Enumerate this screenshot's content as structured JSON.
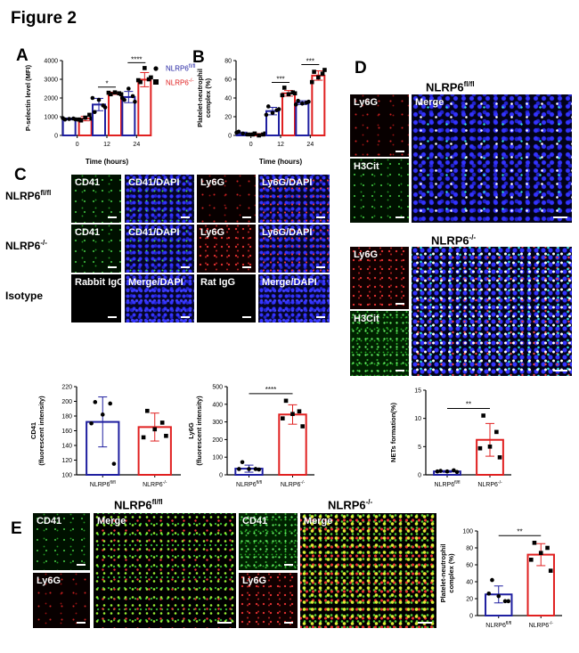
{
  "figure_title": "Figure 2",
  "panels": {
    "A": "A",
    "B": "B",
    "C": "C",
    "D": "D",
    "E": "E"
  },
  "genotypes": {
    "flfl": {
      "base": "NLRP6",
      "sup": "fl/fl"
    },
    "ko": {
      "base": "NLRP6",
      "sup": "-/-"
    }
  },
  "colors": {
    "flfl": "#1f1fa0",
    "ko": "#e02020"
  },
  "legend": [
    {
      "marker": "circle",
      "base": "NLRP6",
      "sup": "fl/fl",
      "color": "#1f1fa0"
    },
    {
      "marker": "square",
      "base": "NLRP6",
      "sup": "-/-",
      "color": "#e02020"
    }
  ],
  "panel_c": {
    "rows": [
      {
        "base": "NLRP6",
        "sup": "fl/fl",
        "images": [
          "CD41",
          "CD41/DAPI",
          "Ly6G",
          "Ly6G/DAPI"
        ]
      },
      {
        "base": "NLRP6",
        "sup": "-/-",
        "images": [
          "CD41",
          "CD41/DAPI",
          "Ly6G",
          "Ly6G/DAPI"
        ]
      },
      {
        "base": "Isotype",
        "sup": "",
        "images": [
          "Rabbit IgG",
          "Merge/DAPI",
          "Rat IgG",
          "Merge/DAPI"
        ]
      }
    ]
  },
  "panel_d": {
    "groups": [
      {
        "base": "NLRP6",
        "sup": "fl/fl",
        "images": [
          "Ly6G",
          "H3Cit",
          "Merge"
        ]
      },
      {
        "base": "NLRP6",
        "sup": "-/-",
        "images": [
          "Ly6G",
          "H3Cit"
        ]
      }
    ]
  },
  "panel_e": {
    "groups": [
      {
        "base": "NLRP6",
        "sup": "fl/fl",
        "images": [
          "CD41",
          "Ly6G",
          "Merge"
        ]
      },
      {
        "base": "NLRP6",
        "sup": "-/-",
        "images": [
          "CD41",
          "Ly6G",
          "Merge"
        ]
      }
    ]
  },
  "chart_data": [
    {
      "id": "A",
      "type": "bar",
      "xlabel": "Time (hours)",
      "ylabel": [
        "P-selectin level (MFI)"
      ],
      "ylim": [
        0,
        4000
      ],
      "yticks": [
        0,
        1000,
        2000,
        3000,
        4000
      ],
      "categories": [
        "0",
        "12",
        "24"
      ],
      "series": [
        {
          "name": "NLRP6fl/fl",
          "color": "#1f1fa0",
          "marker": "circle",
          "values": [
            880,
            1650,
            2050
          ],
          "errors": [
            50,
            330,
            300
          ],
          "points": [
            [
              850,
              900,
              880,
              920,
              860
            ],
            [
              1250,
              1600,
              1900,
              2000,
              1500
            ],
            [
              1900,
              2100,
              2500,
              2000,
              1800
            ]
          ]
        },
        {
          "name": "NLRP6-/-",
          "color": "#e02020",
          "marker": "square",
          "values": [
            900,
            2250,
            2980
          ],
          "errors": [
            120,
            60,
            380
          ],
          "points": [
            [
              800,
              1100,
              950,
              850,
              900
            ],
            [
              2200,
              2250,
              2300,
              2280,
              2200
            ],
            [
              2850,
              3000,
              3600,
              2950,
              3100
            ]
          ]
        }
      ],
      "significance": [
        "",
        "*",
        "****"
      ]
    },
    {
      "id": "B",
      "type": "bar",
      "xlabel": "Time (hours)",
      "ylabel": [
        "Platelet-neutrophil",
        "complex (%)"
      ],
      "ylim": [
        0,
        80
      ],
      "yticks": [
        0,
        20,
        40,
        60,
        80
      ],
      "categories": [
        "0",
        "12",
        "24"
      ],
      "series": [
        {
          "name": "NLRP6fl/fl",
          "color": "#1f1fa0",
          "marker": "circle",
          "values": [
            2,
            26,
            35
          ],
          "errors": [
            1.5,
            4,
            2
          ],
          "points": [
            [
              4,
              1,
              2,
              3,
              1
            ],
            [
              31,
              27,
              24,
              22,
              28
            ],
            [
              37,
              35,
              34,
              33,
              36
            ]
          ]
        },
        {
          "name": "NLRP6-/-",
          "color": "#e02020",
          "marker": "square",
          "values": [
            1,
            45,
            64
          ],
          "errors": [
            1,
            3,
            5
          ],
          "points": [
            [
              2,
              1,
              0,
              1,
              2
            ],
            [
              51,
              46,
              44,
              43,
              45
            ],
            [
              68,
              66,
              62,
              57,
              70
            ]
          ]
        }
      ],
      "significance": [
        "",
        "***",
        "***"
      ]
    },
    {
      "id": "C-CD41",
      "type": "bar",
      "xlabel": "",
      "ylabel": [
        "CD41",
        "(fluorescent intensity)"
      ],
      "ylim": [
        100,
        220
      ],
      "yticks": [
        100,
        120,
        140,
        160,
        180,
        200,
        220
      ],
      "categories": [
        "NLRP6fl/fl",
        "NLRP6-/-"
      ],
      "bars": [
        {
          "color": "#1f1fa0",
          "marker": "circle",
          "value": 172,
          "error": 34,
          "points": [
            199,
            197,
            182,
            170,
            115
          ]
        },
        {
          "color": "#e02020",
          "marker": "square",
          "value": 165,
          "error": 19,
          "points": [
            187,
            171,
            162,
            151,
            153
          ]
        }
      ],
      "significance": ""
    },
    {
      "id": "C-Ly6G",
      "type": "bar",
      "xlabel": "",
      "ylabel": [
        "Ly6G",
        "(fluorescent intensity)"
      ],
      "ylim": [
        0,
        500
      ],
      "yticks": [
        0,
        100,
        200,
        300,
        400,
        500
      ],
      "categories": [
        "NLRP6fl/fl",
        "NLRP6-/-"
      ],
      "bars": [
        {
          "color": "#1f1fa0",
          "marker": "circle",
          "value": 35,
          "error": 20,
          "points": [
            72,
            33,
            33,
            33,
            30
          ]
        },
        {
          "color": "#e02020",
          "marker": "square",
          "value": 342,
          "error": 55,
          "points": [
            420,
            360,
            345,
            320,
            275
          ]
        }
      ],
      "significance": "****"
    },
    {
      "id": "D-NETs",
      "type": "bar",
      "xlabel": "",
      "ylabel": [
        "NETs formation(%)"
      ],
      "ylim": [
        0,
        15
      ],
      "yticks": [
        0,
        5,
        10,
        15
      ],
      "categories": [
        "NLRP6fl/fl",
        "NLRP6-/-"
      ],
      "bars": [
        {
          "color": "#1f1fa0",
          "marker": "circle",
          "value": 0.6,
          "error": 0.15,
          "points": [
            0.7,
            0.8,
            0.6,
            0.6,
            0.5
          ]
        },
        {
          "color": "#e02020",
          "marker": "square",
          "value": 6.2,
          "error": 2.9,
          "points": [
            10.5,
            7.6,
            5,
            4.7,
            3.1
          ]
        }
      ],
      "significance": "**"
    },
    {
      "id": "E",
      "type": "bar",
      "xlabel": "",
      "ylabel": [
        "Platelet-neutrophil",
        "complex (%)"
      ],
      "ylim": [
        0,
        100
      ],
      "yticks": [
        0,
        20,
        40,
        60,
        80,
        100
      ],
      "categories": [
        "NLRP6fl/fl",
        "NLRP6-/-"
      ],
      "bars": [
        {
          "color": "#1f1fa0",
          "marker": "circle",
          "value": 25,
          "error": 10,
          "points": [
            42,
            17,
            23,
            26,
            17
          ]
        },
        {
          "color": "#e02020",
          "marker": "square",
          "value": 72,
          "error": 13,
          "points": [
            86,
            80,
            74,
            66,
            53
          ]
        }
      ],
      "significance": "**"
    }
  ]
}
